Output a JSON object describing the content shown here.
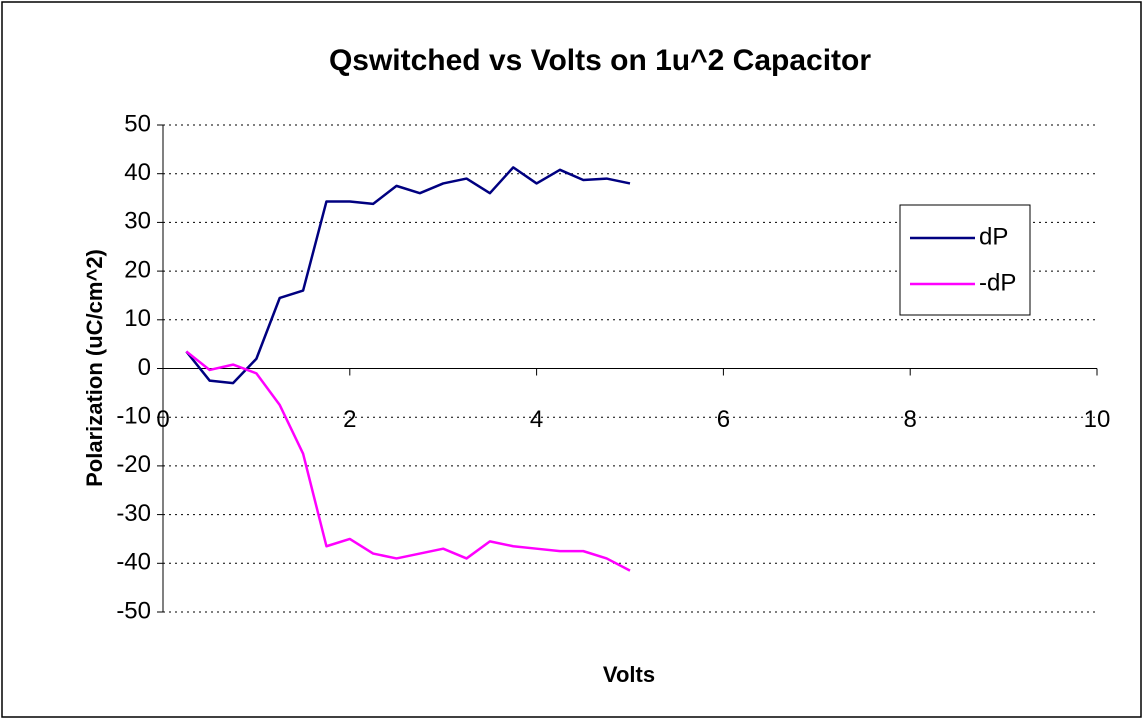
{
  "chart_data": {
    "type": "line",
    "title": "Qswitched vs Volts on 1u^2 Capacitor",
    "x_label": "Volts",
    "y_label": "Polarization  (uC/cm^2)",
    "x": [
      0.25,
      0.5,
      0.75,
      1.0,
      1.25,
      1.5,
      1.75,
      2.0,
      2.25,
      2.5,
      2.75,
      3.0,
      3.25,
      3.5,
      3.75,
      4.0,
      4.25,
      4.5,
      4.75,
      5.0
    ],
    "series": [
      {
        "name": "dP",
        "color": "#000080",
        "values": [
          3.5,
          -2.5,
          -3,
          2,
          14.5,
          16,
          34.3,
          34.3,
          33.8,
          37.5,
          36,
          38,
          39,
          36,
          41.3,
          38,
          40.8,
          38.7,
          39,
          38
        ]
      },
      {
        "name": "-dP",
        "color": "#ff00ff",
        "values": [
          3.5,
          -0.3,
          0.8,
          -1,
          -7.5,
          -17.5,
          -36.5,
          -35,
          -38,
          -39,
          -38,
          -37,
          -39,
          -35.5,
          -36.5,
          -37,
          -37.5,
          -37.5,
          -39,
          -41.5
        ]
      }
    ],
    "xlim": [
      0,
      10
    ],
    "xticks": [
      0,
      2,
      4,
      6,
      8,
      10
    ],
    "ylim": [
      -50,
      50
    ],
    "yticks": [
      -50,
      -40,
      -30,
      -20,
      -10,
      0,
      10,
      20,
      30,
      40,
      50
    ],
    "grid": true,
    "legend": "right"
  }
}
